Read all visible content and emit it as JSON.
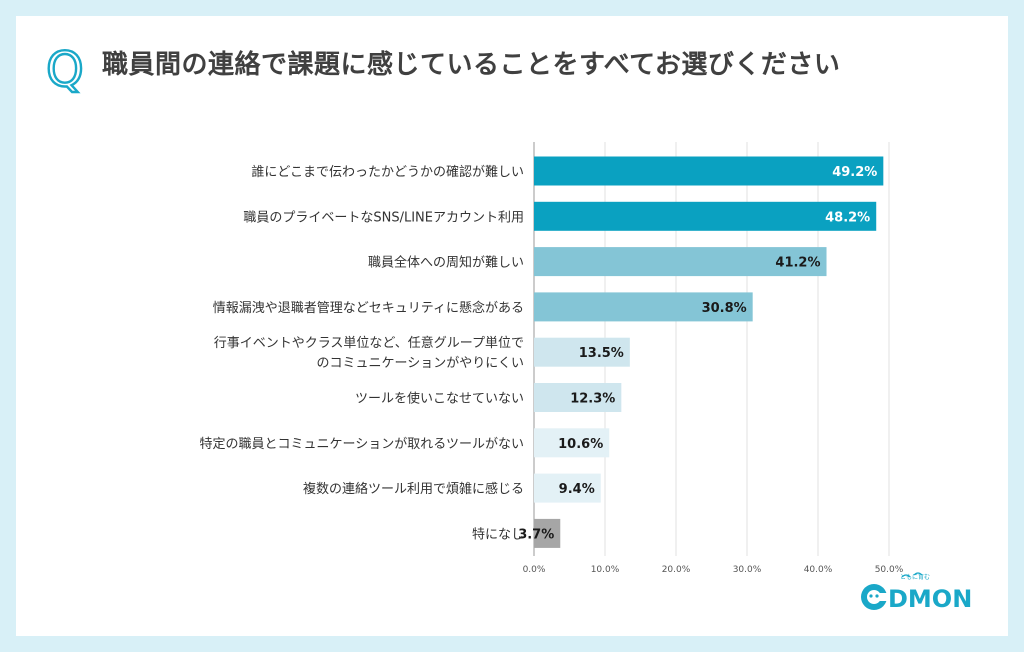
{
  "question": {
    "marker": "Q",
    "text": "職員間の連絡で課題に感じていることをすべてお選びください"
  },
  "chart_data": {
    "type": "bar",
    "orientation": "horizontal",
    "categories": [
      [
        "誰にどこまで伝わったかどうかの確認が難しい"
      ],
      [
        "職員のプライベートなSNS/LINEアカウント利用"
      ],
      [
        "職員全体への周知が難しい"
      ],
      [
        "情報漏洩や退職者管理などセキュリティに懸念がある"
      ],
      [
        "行事イベントやクラス単位など、任意グループ単位で",
        "のコミュニケーションがやりにくい"
      ],
      [
        "ツールを使いこなせていない"
      ],
      [
        "特定の職員とコミュニケーションが取れるツールがない"
      ],
      [
        "複数の連絡ツール利用で煩雑に感じる"
      ],
      [
        "特になし"
      ]
    ],
    "values": [
      49.2,
      48.2,
      41.2,
      30.8,
      13.5,
      12.3,
      10.6,
      9.4,
      3.7
    ],
    "value_labels": [
      "49.2%",
      "48.2%",
      "41.2%",
      "30.8%",
      "13.5%",
      "12.3%",
      "10.6%",
      "9.4%",
      "3.7%"
    ],
    "bar_colors": [
      "#0aa1c1",
      "#0aa1c1",
      "#84c5d6",
      "#84c5d6",
      "#cfe6ee",
      "#cfe6ee",
      "#e3f1f6",
      "#e3f1f6",
      "#a6a6a6"
    ],
    "label_colors": [
      "#ffffff",
      "#ffffff",
      "#1a1a1a",
      "#1a1a1a",
      "#1a1a1a",
      "#1a1a1a",
      "#1a1a1a",
      "#1a1a1a",
      "#1a1a1a"
    ],
    "xlim": [
      0,
      50
    ],
    "xticks": [
      0,
      10,
      20,
      30,
      40,
      50
    ],
    "xtick_labels": [
      "0.0%",
      "10.0%",
      "20.0%",
      "30.0%",
      "40.0%",
      "50.0%"
    ],
    "grid": true
  },
  "logo": {
    "text_left": "C",
    "text_right": "DMON",
    "tagline": "ともに育む",
    "color": "#1aa8c8"
  },
  "colors": {
    "accent": "#1aa8c8",
    "title": "#404040"
  }
}
